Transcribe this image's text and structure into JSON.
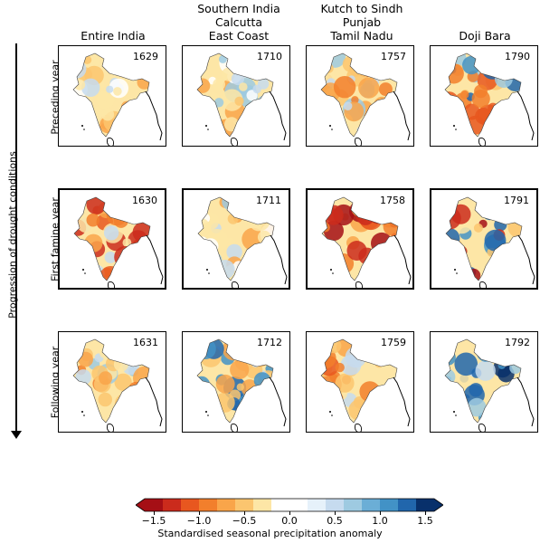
{
  "columns": [
    {
      "title_lines": [
        "Entire India"
      ]
    },
    {
      "title_lines": [
        "Southern India",
        "Calcutta",
        "East Coast"
      ]
    },
    {
      "title_lines": [
        "Kutch to Sindh",
        "Punjab",
        "Tamil Nadu"
      ]
    },
    {
      "title_lines": [
        "Doji Bara"
      ]
    }
  ],
  "rows": [
    "Preceding year",
    "First famine year",
    "Following year"
  ],
  "years": [
    [
      "1629",
      "1710",
      "1757",
      "1790"
    ],
    [
      "1630",
      "1711",
      "1758",
      "1791"
    ],
    [
      "1631",
      "1712",
      "1759",
      "1792"
    ]
  ],
  "side_label": "Progression of drought conditions",
  "colorbar": {
    "label": "Standardised seasonal precipitation anomaly",
    "ticks": [
      "−1.5",
      "−1.0",
      "−0.5",
      "0.0",
      "0.5",
      "1.0",
      "1.5"
    ],
    "colors": [
      "#a50f15",
      "#cb2b1c",
      "#e8571f",
      "#f27f2c",
      "#f9a54a",
      "#fbc56f",
      "#fde6a6",
      "#ffffff",
      "#ffffff",
      "#e6f1fa",
      "#c6dbef",
      "#9ecae1",
      "#6baed6",
      "#4292c6",
      "#2166ac",
      "#08306b"
    ]
  },
  "map_tone": [
    [
      "dry-light",
      "mixed",
      "mixed-dry",
      "dry-blue-center"
    ],
    [
      "dry-strong",
      "mixed",
      "very-dry",
      "dry-west-wet-north"
    ],
    [
      "mixed-dry",
      "wet-north",
      "dry",
      "wet-west"
    ]
  ]
}
